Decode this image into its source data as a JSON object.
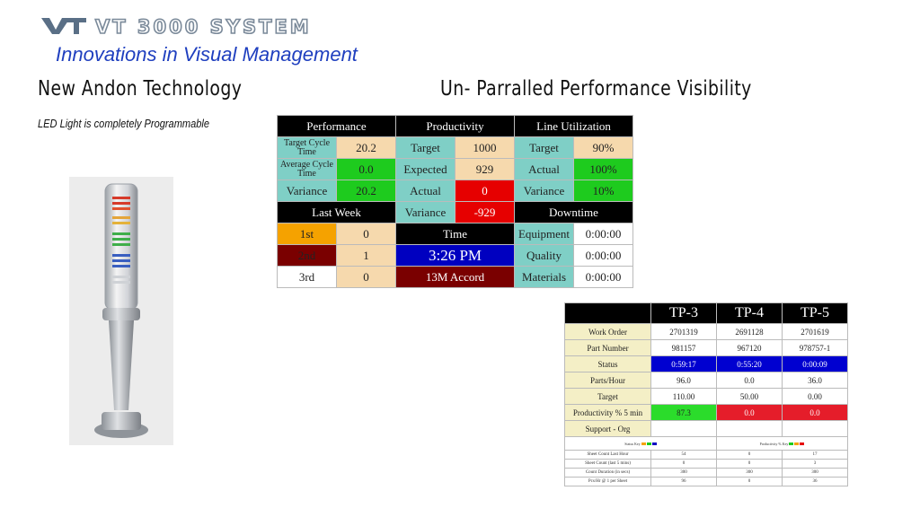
{
  "logo": {
    "text": "VT 3000 SYSTEM"
  },
  "tagline": "Innovations in Visual Management",
  "heading_left": "New Andon Technology",
  "heading_right": "Un- Parralled Performance Visibility",
  "subline": "LED Light is completely Programmable",
  "tower_icon": "andon-tower-light-icon",
  "dashboard": {
    "headers": {
      "performance": "Performance",
      "productivity": "Productivity",
      "line_utilization": "Line Utilization",
      "last_week": "Last Week",
      "time": "Time",
      "downtime": "Downtime"
    },
    "performance": {
      "target_cycle_label": "Target Cycle Time",
      "target_cycle_value": "20.2",
      "avg_cycle_label": "Average Cycle Time",
      "avg_cycle_value": "0.0",
      "variance_label": "Variance",
      "variance_value": "20.2"
    },
    "productivity": {
      "target_label": "Target",
      "target_value": "1000",
      "expected_label": "Expected",
      "expected_value": "929",
      "actual_label": "Actual",
      "actual_value": "0",
      "variance_label": "Variance",
      "variance_value": "-929"
    },
    "line_utilization": {
      "target_label": "Target",
      "target_value": "90%",
      "actual_label": "Actual",
      "actual_value": "100%",
      "variance_label": "Variance",
      "variance_value": "10%"
    },
    "last_week": [
      {
        "label": "1st",
        "value": "0"
      },
      {
        "label": "2nd",
        "value": "1"
      },
      {
        "label": "3rd",
        "value": "0"
      }
    ],
    "time_value": "3:26 PM",
    "model_value": "13M Accord",
    "downtime": [
      {
        "label": "Equipment",
        "value": "0:00:00"
      },
      {
        "label": "Quality",
        "value": "0:00:00"
      },
      {
        "label": "Materials",
        "value": "0:00:00"
      }
    ]
  },
  "tp_table": {
    "columns": [
      "TP-3",
      "TP-4",
      "TP-5"
    ],
    "rows": [
      {
        "label": "Work Order",
        "values": [
          "2701319",
          "2691128",
          "2701619"
        ]
      },
      {
        "label": "Part Number",
        "values": [
          "981157",
          "967120",
          "978757-1"
        ]
      },
      {
        "label": "Status",
        "values": [
          "0:59:17",
          "0:55:20",
          "0:00:09"
        ]
      },
      {
        "label": "Parts/Hour",
        "values": [
          "96.0",
          "0.0",
          "36.0"
        ]
      },
      {
        "label": "Target",
        "values": [
          "110.00",
          "50.00",
          "0.00"
        ]
      },
      {
        "label": "Productivity % 5 min",
        "values": [
          "87.3",
          "0.0",
          "0.0"
        ]
      },
      {
        "label": "Support - Org",
        "values": [
          "",
          "",
          ""
        ]
      }
    ],
    "legend_left": "Status Key",
    "legend_right": "Productivity % Key",
    "small_rows": [
      {
        "label": "Sheet Count Last Hour",
        "values": [
          "54",
          "0",
          "17"
        ]
      },
      {
        "label": "Sheet Count (last 5 mins)",
        "values": [
          "0",
          "0",
          "3"
        ]
      },
      {
        "label": "Count Duration (in secs)",
        "values": [
          "300",
          "300",
          "300"
        ]
      },
      {
        "label": "Pcs/Hr @ 1 per Sheet",
        "values": [
          "96",
          "0",
          "36"
        ]
      }
    ]
  },
  "colors": {
    "tagline": "#1f3fbf",
    "cyan_label": "#7fcfc6",
    "green": "#1ecb1e",
    "red": "#e60000",
    "blue": "#0000c0"
  }
}
